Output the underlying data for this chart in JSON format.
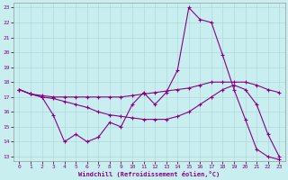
{
  "xlabel": "Windchill (Refroidissement éolien,°C)",
  "bg_color": "#c8eef0",
  "grid_color": "#b0d8da",
  "line_color": "#880088",
  "ylim": [
    13,
    23
  ],
  "xlim": [
    -0.5,
    23.5
  ],
  "yticks": [
    13,
    14,
    15,
    16,
    17,
    18,
    19,
    20,
    21,
    22,
    23
  ],
  "xticks": [
    0,
    1,
    2,
    3,
    4,
    5,
    6,
    7,
    8,
    9,
    10,
    11,
    12,
    13,
    14,
    15,
    16,
    17,
    18,
    19,
    20,
    21,
    22,
    23
  ],
  "line1_x": [
    0,
    1,
    2,
    3,
    4,
    5,
    6,
    7,
    8,
    9,
    10,
    11,
    12,
    13,
    14,
    15,
    16,
    17,
    18,
    19,
    20,
    21,
    22,
    23
  ],
  "line1_y": [
    17.5,
    17.2,
    17.0,
    15.8,
    14.0,
    14.5,
    14.0,
    14.3,
    15.3,
    15.0,
    16.5,
    17.3,
    16.5,
    17.3,
    18.8,
    23.0,
    22.2,
    22.0,
    19.8,
    17.5,
    15.5,
    13.5,
    13.0,
    12.8
  ],
  "line2_x": [
    0,
    1,
    2,
    3,
    4,
    5,
    6,
    7,
    8,
    9,
    10,
    11,
    12,
    13,
    14,
    15,
    16,
    17,
    18,
    19,
    20,
    21,
    22,
    23
  ],
  "line2_y": [
    17.5,
    17.2,
    17.1,
    17.0,
    17.0,
    17.0,
    17.0,
    17.0,
    17.0,
    17.0,
    17.1,
    17.2,
    17.3,
    17.4,
    17.5,
    17.6,
    17.8,
    18.0,
    18.0,
    18.0,
    18.0,
    17.8,
    17.5,
    17.3
  ],
  "line3_x": [
    0,
    1,
    2,
    3,
    4,
    5,
    6,
    7,
    8,
    9,
    10,
    11,
    12,
    13,
    14,
    15,
    16,
    17,
    18,
    19,
    20,
    21,
    22,
    23
  ],
  "line3_y": [
    17.5,
    17.2,
    17.0,
    16.9,
    16.7,
    16.5,
    16.3,
    16.0,
    15.8,
    15.7,
    15.6,
    15.5,
    15.5,
    15.5,
    15.7,
    16.0,
    16.5,
    17.0,
    17.5,
    17.8,
    17.5,
    16.5,
    14.5,
    13.0
  ]
}
